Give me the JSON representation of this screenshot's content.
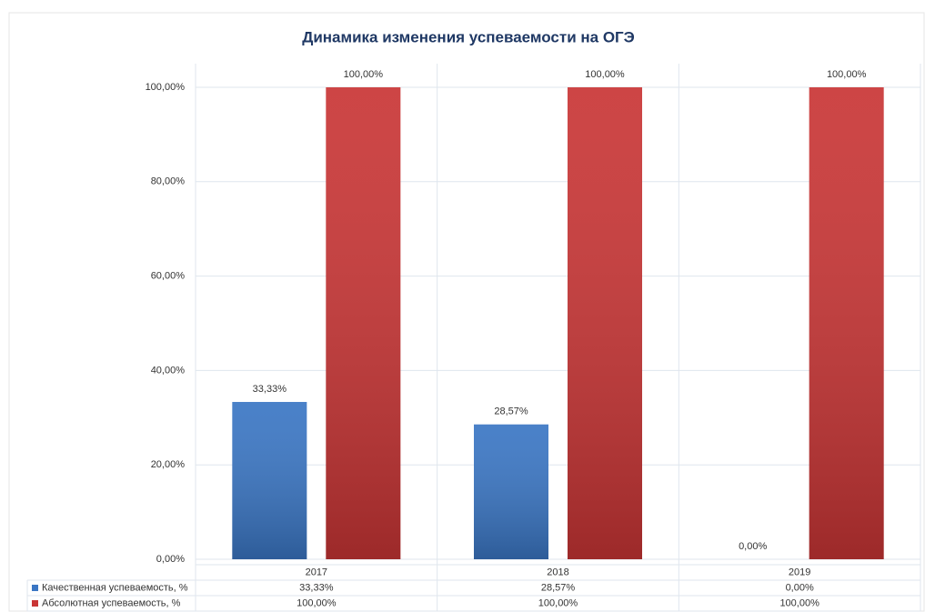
{
  "chart_data": {
    "type": "bar",
    "title": "Динамика изменения успеваемости на ОГЭ",
    "categories": [
      "2017",
      "2018",
      "2019"
    ],
    "series": [
      {
        "name": "Качественная успеваемость, %",
        "color": "#3a76c4",
        "values": [
          33.33,
          28.57,
          0
        ],
        "value_labels": [
          "33,33%",
          "28,57%",
          "0,00%"
        ]
      },
      {
        "name": "Абсолютная успеваемость, %",
        "color": "#c93535",
        "values": [
          100,
          100,
          100
        ],
        "value_labels": [
          "100,00%",
          "100,00%",
          "100,00%"
        ]
      }
    ],
    "ylim": [
      0,
      100
    ],
    "yticks": [
      {
        "value": 0,
        "label": "0,00%"
      },
      {
        "value": 20,
        "label": "20,00%"
      },
      {
        "value": 40,
        "label": "40,00%"
      },
      {
        "value": 60,
        "label": "60,00%"
      },
      {
        "value": 80,
        "label": "80,00%"
      },
      {
        "value": 100,
        "label": "100,00%"
      }
    ],
    "grid": true
  }
}
